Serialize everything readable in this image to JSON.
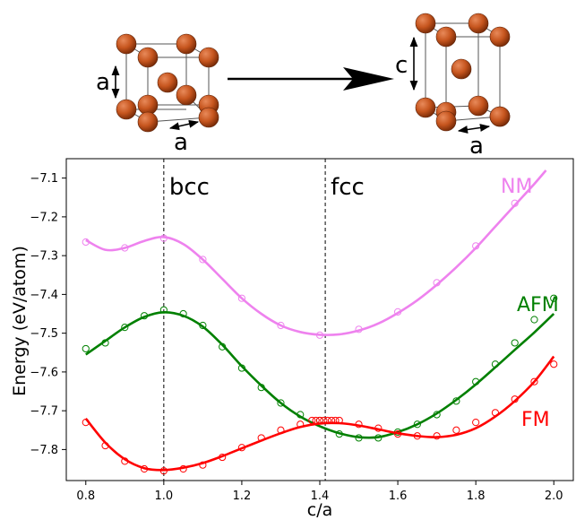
{
  "structures": {
    "bcc": {
      "edge_label": "a",
      "side_label": "a"
    },
    "fct": {
      "edge_label": "a",
      "side_label": "c"
    },
    "atom_color": "#c6551e",
    "arrow_color": "#000000"
  },
  "chart_data": {
    "type": "line",
    "title": "",
    "xlabel": "c/a",
    "ylabel": "Energy  (eV/atom)",
    "xlim": [
      0.75,
      2.05
    ],
    "ylim": [
      -7.88,
      -7.05
    ],
    "xticks": [
      0.8,
      1.0,
      1.2,
      1.4,
      1.6,
      1.8,
      2.0
    ],
    "xtick_labels": [
      "0.8",
      "1.0",
      "1.2",
      "1.4",
      "1.6",
      "1.8",
      "2.0"
    ],
    "yticks": [
      -7.8,
      -7.7,
      -7.6,
      -7.5,
      -7.4,
      -7.3,
      -7.2,
      -7.1
    ],
    "ytick_labels": [
      "−7.8",
      "−7.7",
      "−7.6",
      "−7.5",
      "−7.4",
      "−7.3",
      "−7.2",
      "−7.1"
    ],
    "grid": false,
    "vlines": [
      {
        "x": 1.0,
        "label": "bcc"
      },
      {
        "x": 1.414,
        "label": "fcc"
      }
    ],
    "series": [
      {
        "name": "NM",
        "color": "#ee82ee",
        "points": [
          [
            0.8,
            -7.265
          ],
          [
            0.9,
            -7.28
          ],
          [
            1.0,
            -7.255
          ],
          [
            1.1,
            -7.31
          ],
          [
            1.2,
            -7.41
          ],
          [
            1.3,
            -7.48
          ],
          [
            1.4,
            -7.505
          ],
          [
            1.5,
            -7.49
          ],
          [
            1.6,
            -7.445
          ],
          [
            1.7,
            -7.37
          ],
          [
            1.8,
            -7.275
          ],
          [
            1.9,
            -7.165
          ]
        ],
        "curve": [
          [
            0.8,
            -7.26
          ],
          [
            0.85,
            -7.285
          ],
          [
            0.9,
            -7.28
          ],
          [
            0.95,
            -7.262
          ],
          [
            1.0,
            -7.252
          ],
          [
            1.05,
            -7.27
          ],
          [
            1.1,
            -7.31
          ],
          [
            1.15,
            -7.36
          ],
          [
            1.2,
            -7.41
          ],
          [
            1.25,
            -7.45
          ],
          [
            1.3,
            -7.48
          ],
          [
            1.35,
            -7.497
          ],
          [
            1.4,
            -7.504
          ],
          [
            1.45,
            -7.503
          ],
          [
            1.5,
            -7.493
          ],
          [
            1.55,
            -7.475
          ],
          [
            1.6,
            -7.448
          ],
          [
            1.65,
            -7.415
          ],
          [
            1.7,
            -7.375
          ],
          [
            1.75,
            -7.33
          ],
          [
            1.8,
            -7.28
          ],
          [
            1.85,
            -7.225
          ],
          [
            1.9,
            -7.17
          ],
          [
            1.95,
            -7.115
          ],
          [
            1.98,
            -7.08
          ]
        ]
      },
      {
        "name": "AFM",
        "color": "#008000",
        "points": [
          [
            0.8,
            -7.54
          ],
          [
            0.85,
            -7.525
          ],
          [
            0.9,
            -7.485
          ],
          [
            0.95,
            -7.455
          ],
          [
            1.0,
            -7.44
          ],
          [
            1.05,
            -7.45
          ],
          [
            1.1,
            -7.48
          ],
          [
            1.15,
            -7.535
          ],
          [
            1.2,
            -7.59
          ],
          [
            1.25,
            -7.64
          ],
          [
            1.3,
            -7.68
          ],
          [
            1.35,
            -7.71
          ],
          [
            1.4,
            -7.725
          ],
          [
            1.45,
            -7.76
          ],
          [
            1.5,
            -7.77
          ],
          [
            1.55,
            -7.77
          ],
          [
            1.6,
            -7.755
          ],
          [
            1.65,
            -7.735
          ],
          [
            1.7,
            -7.71
          ],
          [
            1.75,
            -7.675
          ],
          [
            1.8,
            -7.625
          ],
          [
            1.85,
            -7.58
          ],
          [
            1.9,
            -7.525
          ],
          [
            1.95,
            -7.465
          ],
          [
            2.0,
            -7.41
          ]
        ],
        "curve": [
          [
            0.8,
            -7.555
          ],
          [
            0.85,
            -7.52
          ],
          [
            0.9,
            -7.485
          ],
          [
            0.95,
            -7.458
          ],
          [
            1.0,
            -7.446
          ],
          [
            1.05,
            -7.455
          ],
          [
            1.1,
            -7.483
          ],
          [
            1.15,
            -7.53
          ],
          [
            1.2,
            -7.585
          ],
          [
            1.25,
            -7.635
          ],
          [
            1.3,
            -7.68
          ],
          [
            1.35,
            -7.715
          ],
          [
            1.4,
            -7.74
          ],
          [
            1.45,
            -7.758
          ],
          [
            1.5,
            -7.768
          ],
          [
            1.55,
            -7.768
          ],
          [
            1.6,
            -7.755
          ],
          [
            1.65,
            -7.735
          ],
          [
            1.7,
            -7.707
          ],
          [
            1.75,
            -7.672
          ],
          [
            1.8,
            -7.632
          ],
          [
            1.85,
            -7.588
          ],
          [
            1.9,
            -7.543
          ],
          [
            1.95,
            -7.498
          ],
          [
            2.0,
            -7.45
          ]
        ]
      },
      {
        "name": "FM",
        "color": "#ff0000",
        "points": [
          [
            0.8,
            -7.73
          ],
          [
            0.85,
            -7.79
          ],
          [
            0.9,
            -7.83
          ],
          [
            0.95,
            -7.85
          ],
          [
            1.0,
            -7.855
          ],
          [
            1.05,
            -7.85
          ],
          [
            1.1,
            -7.84
          ],
          [
            1.15,
            -7.82
          ],
          [
            1.2,
            -7.795
          ],
          [
            1.25,
            -7.77
          ],
          [
            1.3,
            -7.75
          ],
          [
            1.35,
            -7.735
          ],
          [
            1.38,
            -7.725
          ],
          [
            1.39,
            -7.725
          ],
          [
            1.4,
            -7.725
          ],
          [
            1.41,
            -7.725
          ],
          [
            1.42,
            -7.725
          ],
          [
            1.43,
            -7.725
          ],
          [
            1.44,
            -7.725
          ],
          [
            1.45,
            -7.725
          ],
          [
            1.5,
            -7.735
          ],
          [
            1.55,
            -7.745
          ],
          [
            1.6,
            -7.76
          ],
          [
            1.65,
            -7.765
          ],
          [
            1.7,
            -7.765
          ],
          [
            1.75,
            -7.75
          ],
          [
            1.8,
            -7.73
          ],
          [
            1.85,
            -7.705
          ],
          [
            1.9,
            -7.67
          ],
          [
            1.95,
            -7.625
          ],
          [
            2.0,
            -7.58
          ]
        ],
        "curve": [
          [
            0.8,
            -7.72
          ],
          [
            0.85,
            -7.782
          ],
          [
            0.9,
            -7.825
          ],
          [
            0.95,
            -7.848
          ],
          [
            1.0,
            -7.853
          ],
          [
            1.05,
            -7.847
          ],
          [
            1.1,
            -7.835
          ],
          [
            1.15,
            -7.817
          ],
          [
            1.2,
            -7.797
          ],
          [
            1.25,
            -7.777
          ],
          [
            1.3,
            -7.758
          ],
          [
            1.35,
            -7.742
          ],
          [
            1.4,
            -7.733
          ],
          [
            1.45,
            -7.732
          ],
          [
            1.5,
            -7.738
          ],
          [
            1.55,
            -7.748
          ],
          [
            1.6,
            -7.758
          ],
          [
            1.65,
            -7.765
          ],
          [
            1.7,
            -7.768
          ],
          [
            1.75,
            -7.762
          ],
          [
            1.8,
            -7.745
          ],
          [
            1.85,
            -7.715
          ],
          [
            1.9,
            -7.675
          ],
          [
            1.95,
            -7.625
          ],
          [
            2.0,
            -7.56
          ]
        ]
      }
    ]
  }
}
